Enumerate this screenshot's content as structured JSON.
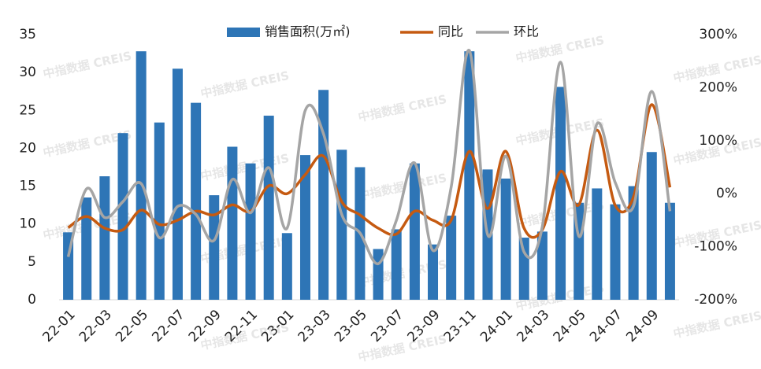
{
  "chart_data": {
    "type": "bar-line",
    "watermark": "中指数据 CREIS",
    "categories": [
      "22-01",
      null,
      "22-03",
      null,
      "22-05",
      null,
      "22-07",
      null,
      "22-09",
      null,
      "22-11",
      null,
      "23-01",
      null,
      "23-03",
      null,
      "23-05",
      null,
      "23-07",
      null,
      "23-09",
      null,
      "23-11",
      null,
      "24-01",
      null,
      "24-03",
      null,
      "24-05",
      null,
      "24-07",
      null,
      "24-09",
      null
    ],
    "series": [
      {
        "name": "销售面积(万㎡)",
        "color": "#2e75b6",
        "type": "bar",
        "values": [
          8.9,
          13.5,
          16.3,
          22.0,
          32.8,
          23.4,
          30.5,
          26.0,
          13.8,
          20.2,
          18.0,
          24.3,
          8.8,
          19.1,
          27.7,
          19.8,
          17.5,
          6.7,
          9.3,
          18.0,
          7.3,
          11.1,
          32.8,
          17.2,
          16.0,
          8.2,
          9.0,
          28.1,
          12.8,
          14.7,
          12.6,
          15.0,
          19.5,
          12.8
        ]
      },
      {
        "name": "同比",
        "color": "#c55a11",
        "type": "line",
        "axis": "y2",
        "values": [
          -64,
          -43,
          -65,
          -68,
          -31,
          -58,
          -50,
          -33,
          -40,
          -21,
          -33,
          15,
          0,
          36,
          71,
          -15,
          -40,
          -65,
          -76,
          -33,
          -50,
          -50,
          80,
          -28,
          80,
          -65,
          -68,
          42,
          -21,
          120,
          -22,
          -6,
          168,
          12
        ]
      },
      {
        "name": "环比",
        "color": "#a5a5a5",
        "type": "line",
        "axis": "y2",
        "values": [
          -119,
          9,
          -45,
          -15,
          19,
          -83,
          -24,
          -39,
          -88,
          27,
          -36,
          49,
          -65,
          157,
          113,
          -39,
          -74,
          -132,
          -50,
          58,
          -107,
          12,
          270,
          -77,
          71,
          -110,
          -62,
          248,
          -80,
          132,
          21,
          -24,
          193,
          -33
        ]
      }
    ],
    "ylim": [
      0,
      35
    ],
    "yticks": [
      0,
      5,
      10,
      15,
      20,
      25,
      30,
      35
    ],
    "y2lim": [
      -200,
      300
    ],
    "y2ticks": [
      {
        "value": -200,
        "label": "-200%"
      },
      {
        "value": -100,
        "label": "-100%"
      },
      {
        "value": 0,
        "label": "0%"
      },
      {
        "value": 100,
        "label": "100%"
      },
      {
        "value": 200,
        "label": "200%"
      },
      {
        "value": 300,
        "label": "300%"
      }
    ],
    "legend": "top"
  }
}
